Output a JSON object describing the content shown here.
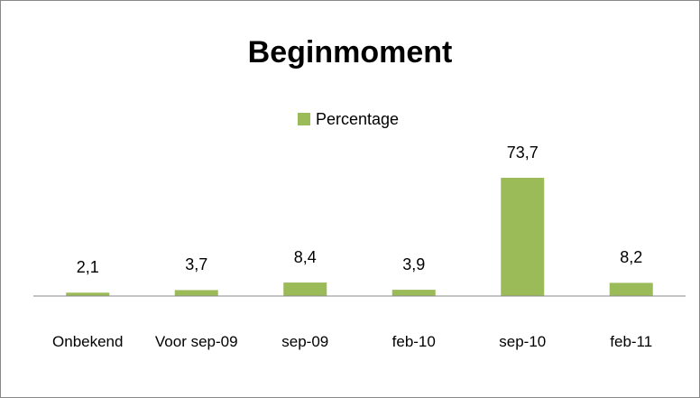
{
  "chart_data": {
    "type": "bar",
    "title": "Beginmoment",
    "categories": [
      "Onbekend",
      "Voor sep-09",
      "sep-09",
      "feb-10",
      "sep-10",
      "feb-11"
    ],
    "series": [
      {
        "name": "Percentage",
        "color": "#9bbb59",
        "values": [
          2.1,
          3.7,
          8.4,
          3.9,
          73.7,
          8.2
        ],
        "value_labels": [
          "2,1",
          "3,7",
          "8,4",
          "3,9",
          "73,7",
          "8,2"
        ]
      }
    ],
    "legend": "top"
  }
}
